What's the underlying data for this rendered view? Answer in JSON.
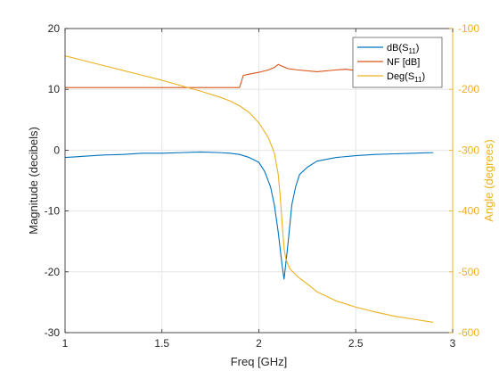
{
  "chart_data": {
    "type": "line",
    "xlabel": "Freq [GHz]",
    "ylabel_left": "Magnitude (decibels)",
    "ylabel_right": "Angle (degrees)",
    "xlim": [
      1,
      3
    ],
    "ylim_left": [
      -30,
      20
    ],
    "ylim_right": [
      -600,
      -100
    ],
    "x_ticks": [
      1,
      1.5,
      2,
      2.5,
      3
    ],
    "x_tick_labels": [
      "1",
      "1.5",
      "2",
      "2.5",
      "3"
    ],
    "y_left_ticks": [
      -30,
      -20,
      -10,
      0,
      10,
      20
    ],
    "y_left_tick_labels": [
      "-30",
      "-20",
      "-10",
      "0",
      "10",
      "20"
    ],
    "y_right_ticks": [
      -600,
      -500,
      -400,
      -300,
      -200,
      -100
    ],
    "y_right_tick_labels": [
      "-600",
      "-500",
      "-400",
      "-300",
      "-200",
      "-100"
    ],
    "grid": true,
    "legend_position": "top-right",
    "colors": {
      "axis_left": "#262626",
      "axis_right": "#EDB120",
      "grid": "#e6e6e6"
    },
    "series": [
      {
        "name": "dB(S11)",
        "legend_main": "dB(S",
        "legend_sub": "11",
        "legend_tail": ")",
        "axis": "left",
        "color": "#0072BD",
        "x": [
          1.0,
          1.05,
          1.1,
          1.2,
          1.3,
          1.4,
          1.5,
          1.6,
          1.7,
          1.8,
          1.85,
          1.9,
          1.95,
          2.0,
          2.03,
          2.06,
          2.08,
          2.1,
          2.12,
          2.13,
          2.15,
          2.17,
          2.19,
          2.21,
          2.25,
          2.3,
          2.4,
          2.5,
          2.6,
          2.7,
          2.8,
          2.9
        ],
        "y": [
          -1.2,
          -1.1,
          -1.0,
          -0.8,
          -0.7,
          -0.5,
          -0.5,
          -0.4,
          -0.3,
          -0.4,
          -0.5,
          -0.7,
          -1.2,
          -2.0,
          -3.5,
          -6.0,
          -9.0,
          -13.5,
          -19.0,
          -21.2,
          -15.5,
          -9.0,
          -6.0,
          -4.0,
          -2.8,
          -1.8,
          -1.2,
          -0.9,
          -0.7,
          -0.6,
          -0.5,
          -0.4
        ]
      },
      {
        "name": "NF [dB]",
        "legend_main": "NF [dB]",
        "legend_sub": "",
        "legend_tail": "",
        "axis": "left",
        "color": "#D95319",
        "x": [
          1.0,
          1.5,
          1.9,
          1.92,
          1.95,
          2.0,
          2.05,
          2.08,
          2.1,
          2.12,
          2.15,
          2.2,
          2.3,
          2.4,
          2.45,
          2.5,
          2.55,
          2.6,
          2.7,
          2.8,
          2.9
        ],
        "y": [
          10.3,
          10.3,
          10.3,
          12.3,
          12.5,
          12.8,
          13.2,
          13.6,
          14.1,
          13.8,
          13.4,
          13.2,
          12.9,
          13.2,
          13.3,
          13.1,
          12.9,
          12.8,
          12.6,
          12.5,
          12.5
        ]
      },
      {
        "name": "Deg(S11)",
        "legend_main": "Deg(S",
        "legend_sub": "11",
        "legend_tail": ")",
        "axis": "right",
        "color": "#EDB120",
        "x": [
          1.0,
          1.1,
          1.2,
          1.3,
          1.4,
          1.5,
          1.6,
          1.7,
          1.8,
          1.85,
          1.9,
          1.95,
          2.0,
          2.05,
          2.08,
          2.1,
          2.11,
          2.12,
          2.13,
          2.14,
          2.16,
          2.2,
          2.25,
          2.3,
          2.4,
          2.5,
          2.6,
          2.7,
          2.8,
          2.9
        ],
        "y": [
          -145,
          -153,
          -161,
          -169,
          -177,
          -185,
          -194,
          -203,
          -213,
          -219,
          -227,
          -238,
          -255,
          -280,
          -305,
          -340,
          -375,
          -420,
          -462,
          -480,
          -495,
          -508,
          -520,
          -533,
          -548,
          -558,
          -566,
          -573,
          -578,
          -583
        ]
      }
    ]
  }
}
